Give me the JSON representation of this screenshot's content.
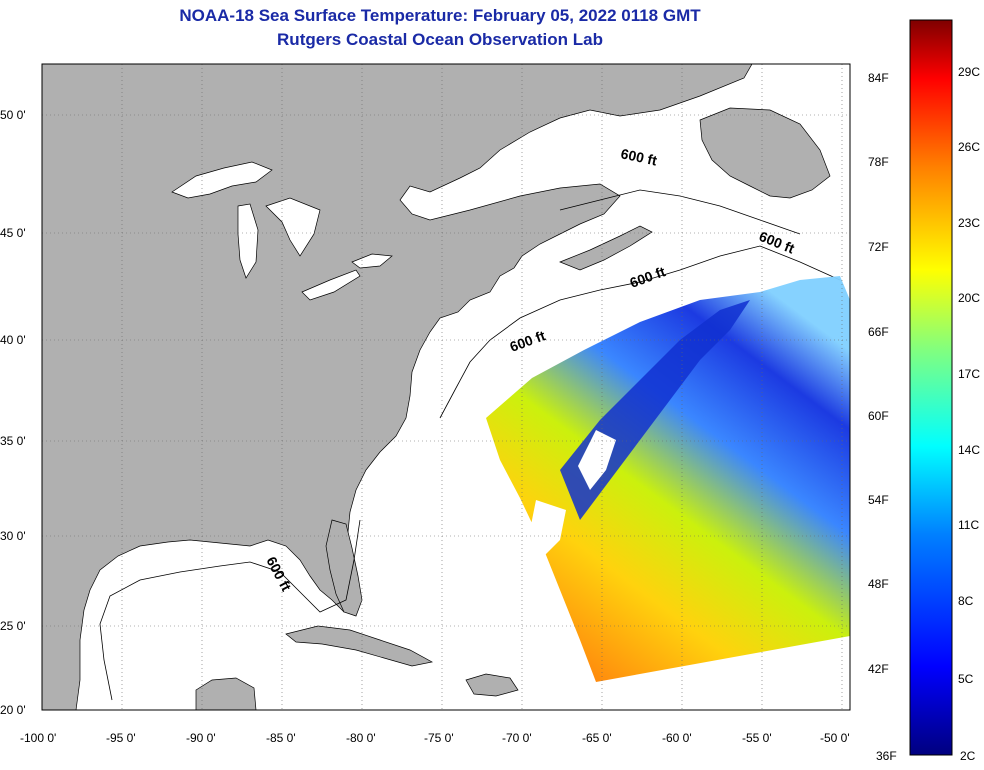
{
  "title": "NOAA-18 Sea Surface Temperature:  February 05, 2022 0118 GMT",
  "subtitle": "Rutgers Coastal Ocean Observation Lab",
  "map": {
    "lat_labels": [
      "50 0'",
      "45 0'",
      "40 0'",
      "35 0'",
      "30 0'",
      "25 0'",
      "20 0'"
    ],
    "lon_labels": [
      "-100 0'",
      "-95 0'",
      "-90 0'",
      "-85 0'",
      "-80 0'",
      "-75 0'",
      "-70 0'",
      "-65 0'",
      "-60 0'",
      "-55 0'",
      "-50 0'"
    ],
    "depth_contour_label": "600 ft",
    "land_color": "#b0b0b0",
    "ocean_color": "#ffffff"
  },
  "colorbar": {
    "fahrenheit_labels": [
      "84F",
      "78F",
      "72F",
      "66F",
      "60F",
      "54F",
      "48F",
      "42F",
      "36F"
    ],
    "celsius_labels": [
      "29C",
      "26C",
      "23C",
      "20C",
      "17C",
      "14C",
      "11C",
      "8C",
      "5C",
      "2C"
    ],
    "colors": [
      "#00007f",
      "#0000ff",
      "#0080ff",
      "#00ffff",
      "#80ff80",
      "#ffff00",
      "#ff8000",
      "#ff0000",
      "#7f0000"
    ]
  }
}
